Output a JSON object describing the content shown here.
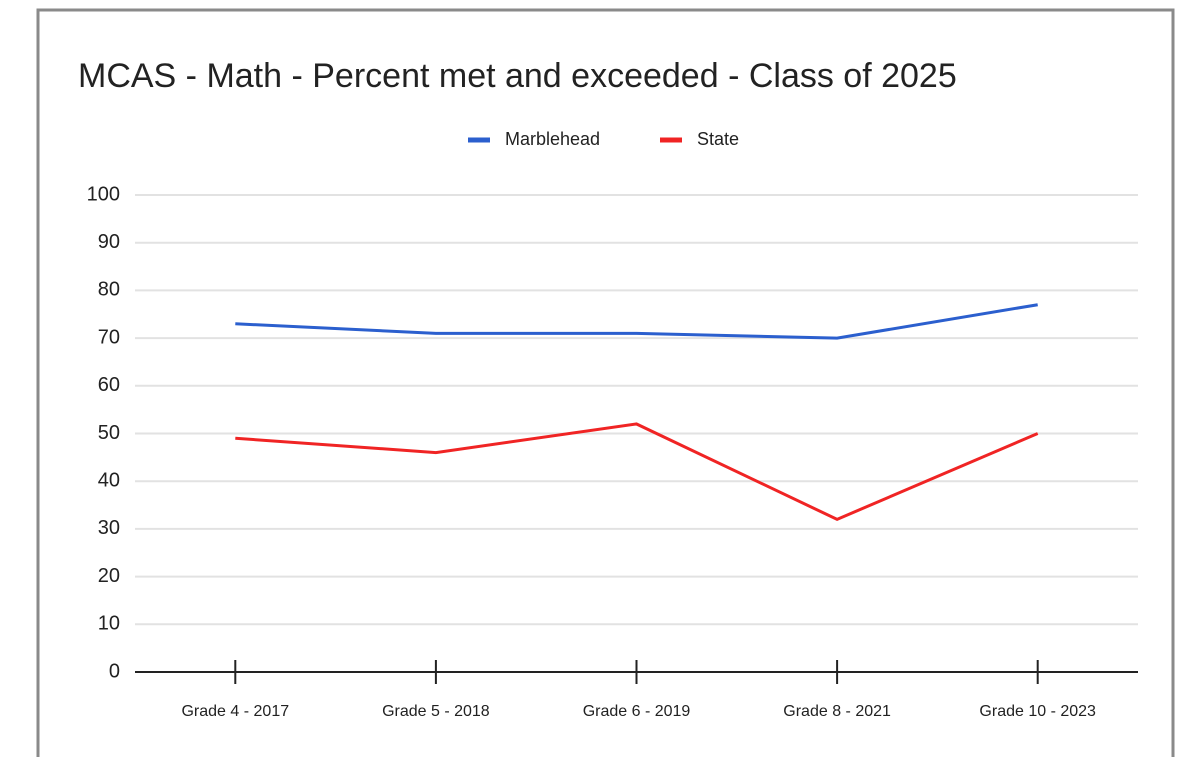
{
  "chart_data": {
    "type": "line",
    "title": "MCAS - Math - Percent met and exceeded - Class of 2025",
    "categories": [
      "Grade 4 - 2017",
      "Grade 5 - 2018",
      "Grade 6 - 2019",
      "Grade 8 - 2021",
      "Grade 10 - 2023"
    ],
    "series": [
      {
        "name": "Marblehead",
        "color": "#2b5fce",
        "values": [
          73,
          71,
          71,
          70,
          77
        ]
      },
      {
        "name": "State",
        "color": "#f02424",
        "values": [
          49,
          46,
          52,
          32,
          50
        ]
      }
    ],
    "ylim": [
      0,
      100
    ],
    "yticks": [
      0,
      10,
      20,
      30,
      40,
      50,
      60,
      70,
      80,
      90,
      100
    ],
    "grid": true,
    "legend": "top"
  }
}
